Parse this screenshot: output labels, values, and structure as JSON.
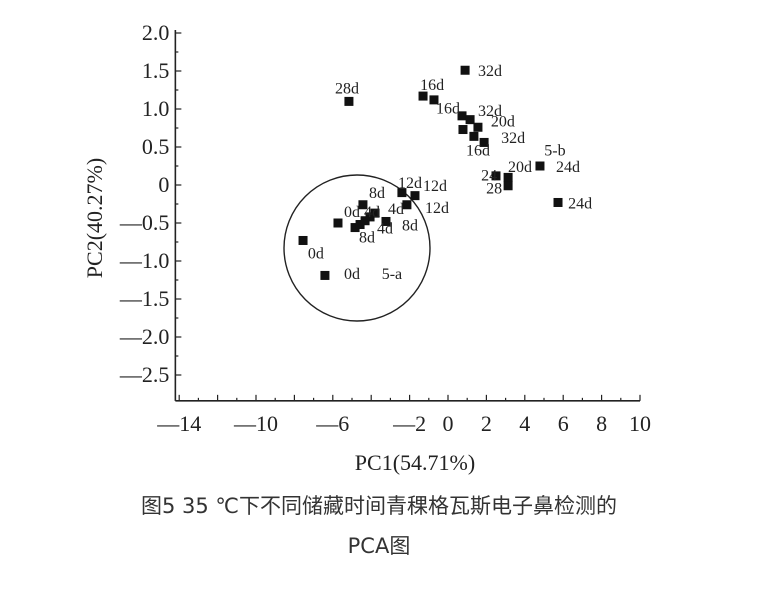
{
  "chart_data": {
    "type": "scatter",
    "xlabel": "PC1(54.71%)",
    "ylabel": "PC2(40.27%)",
    "xlim": [
      -14.2,
      10
    ],
    "ylim": [
      -2.84,
      2.0
    ],
    "grid": false,
    "x_ticks": [
      {
        "v": -14,
        "label": "—14"
      },
      {
        "v": -10,
        "label": "—10"
      },
      {
        "v": -6,
        "label": "—6"
      },
      {
        "v": -2,
        "label": "—2"
      },
      {
        "v": 0,
        "label": "0"
      },
      {
        "v": 2,
        "label": "2"
      },
      {
        "v": 4,
        "label": "4"
      },
      {
        "v": 6,
        "label": "6"
      },
      {
        "v": 8,
        "label": "8"
      },
      {
        "v": 10,
        "label": "10"
      }
    ],
    "y_ticks": [
      {
        "v": 2.0,
        "label": "2.0"
      },
      {
        "v": 1.5,
        "label": "1.5"
      },
      {
        "v": 1.0,
        "label": "1.0"
      },
      {
        "v": 0.5,
        "label": "0.5"
      },
      {
        "v": 0,
        "label": "0"
      },
      {
        "v": -0.5,
        "label": "—0.5"
      },
      {
        "v": -1.0,
        "label": "—1.0"
      },
      {
        "v": -1.5,
        "label": "—1.5"
      },
      {
        "v": -2.0,
        "label": "—2.0"
      },
      {
        "v": -2.5,
        "label": "—2.5"
      }
    ],
    "points": [
      [
        -5.16,
        1.1
      ],
      [
        -1.3,
        1.17
      ],
      [
        -0.73,
        1.12
      ],
      [
        0.89,
        1.51
      ],
      [
        0.73,
        0.91
      ],
      [
        1.15,
        0.86
      ],
      [
        0.78,
        0.73
      ],
      [
        1.56,
        0.76
      ],
      [
        1.35,
        0.64
      ],
      [
        1.88,
        0.56
      ],
      [
        2.5,
        0.12
      ],
      [
        3.13,
        0.1
      ],
      [
        3.13,
        -0.01
      ],
      [
        4.79,
        0.25
      ],
      [
        5.73,
        -0.23
      ],
      [
        -2.4,
        -0.1
      ],
      [
        -1.72,
        -0.14
      ],
      [
        -2.14,
        -0.26
      ],
      [
        -3.23,
        -0.48
      ],
      [
        -4.43,
        -0.26
      ],
      [
        -5.73,
        -0.5
      ],
      [
        -7.55,
        -0.73
      ],
      [
        -6.41,
        -1.19
      ],
      [
        -4.84,
        -0.56
      ],
      [
        -4.58,
        -0.52
      ],
      [
        -4.32,
        -0.47
      ],
      [
        -4.06,
        -0.42
      ],
      [
        -3.8,
        -0.37
      ]
    ],
    "annotations": [
      {
        "text": "28d",
        "x": -5.26,
        "y": 1.28
      },
      {
        "text": "16d",
        "x": -0.83,
        "y": 1.33
      },
      {
        "text": "16d",
        "x": 0.0,
        "y": 1.02
      },
      {
        "text": "32d",
        "x": 2.19,
        "y": 1.51
      },
      {
        "text": "32d",
        "x": 2.19,
        "y": 0.99
      },
      {
        "text": "20d",
        "x": 2.86,
        "y": 0.85
      },
      {
        "text": "32d",
        "x": 3.39,
        "y": 0.63
      },
      {
        "text": "16d",
        "x": 1.56,
        "y": 0.47
      },
      {
        "text": "5-b",
        "x": 5.57,
        "y": 0.47
      },
      {
        "text": "24d",
        "x": 6.25,
        "y": 0.25
      },
      {
        "text": "20d",
        "x": 3.75,
        "y": 0.25
      },
      {
        "text": "24",
        "x": 2.14,
        "y": 0.14
      },
      {
        "text": "28",
        "x": 2.4,
        "y": -0.03
      },
      {
        "text": "24d",
        "x": 6.88,
        "y": -0.23
      },
      {
        "text": "12d",
        "x": -1.98,
        "y": 0.04
      },
      {
        "text": "12d",
        "x": -0.68,
        "y": 0.0
      },
      {
        "text": "12d",
        "x": -0.57,
        "y": -0.29
      },
      {
        "text": "8d",
        "x": -3.7,
        "y": -0.09
      },
      {
        "text": "4d",
        "x": -2.71,
        "y": -0.3
      },
      {
        "text": "8d",
        "x": -1.98,
        "y": -0.52
      },
      {
        "text": "4d",
        "x": -3.28,
        "y": -0.56
      },
      {
        "text": "0d",
        "x": -5.0,
        "y": -0.34
      },
      {
        "text": "4d",
        "x": -3.96,
        "y": -0.34
      },
      {
        "text": "8d",
        "x": -4.22,
        "y": -0.68
      },
      {
        "text": "0d",
        "x": -6.88,
        "y": -0.89
      },
      {
        "text": "0d",
        "x": -5.0,
        "y": -1.16
      },
      {
        "text": "5-a",
        "x": -2.92,
        "y": -1.16
      }
    ],
    "marker_color": "#111111"
  },
  "caption": {
    "line1": "图5  35 ℃下不同储藏时间青稞格瓦斯电子鼻检测的",
    "line2": "PCA图"
  }
}
